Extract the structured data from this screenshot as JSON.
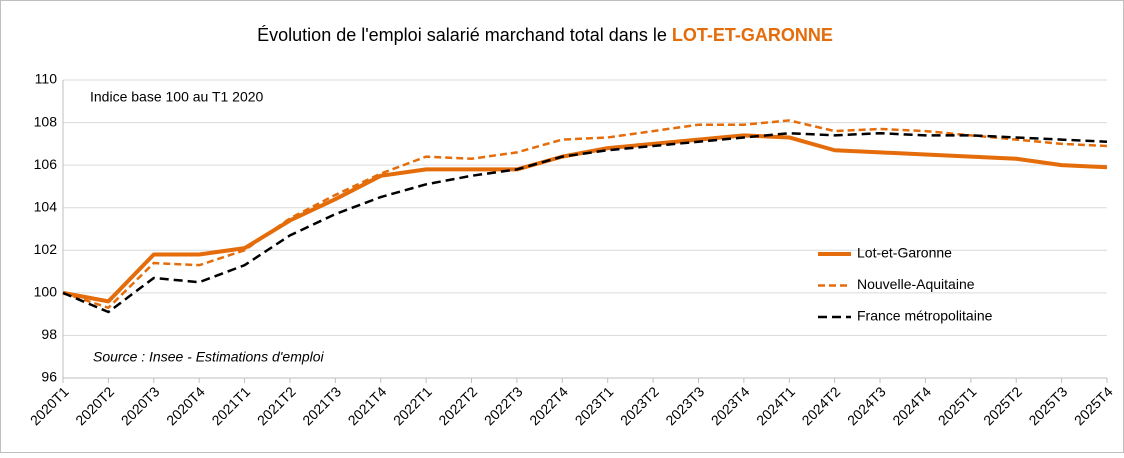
{
  "chart_data": {
    "type": "line",
    "title": "Évolution de l'emploi salarié marchand total dans le ",
    "title_highlight": "LOT-ET-GARONNE",
    "annotations": [
      "Indice base 100 au T1 2020",
      "Source : Insee - Estimations d'emploi"
    ],
    "categories": [
      "2020T1",
      "2020T2",
      "2020T3",
      "2020T4",
      "2021T1",
      "2021T2",
      "2021T3",
      "2021T4",
      "2022T1",
      "2022T2",
      "2022T3",
      "2022T4",
      "2023T1",
      "2023T2",
      "2023T3",
      "2023T4",
      "2024T1",
      "2024T2",
      "2024T3",
      "2024T4",
      "2025T1",
      "2025T2",
      "2025T3",
      "2025T4"
    ],
    "series": [
      {
        "name": "Lot-et-Garonne",
        "color": "#e46c0a",
        "style": "solid",
        "values": [
          100,
          99.6,
          101.8,
          101.8,
          102.1,
          103.4,
          104.4,
          105.5,
          105.8,
          105.8,
          105.8,
          106.4,
          106.8,
          107.0,
          107.2,
          107.4,
          107.3,
          106.7,
          106.6,
          106.5,
          106.4,
          106.3,
          106.0,
          105.9
        ]
      },
      {
        "name": "Nouvelle-Aquitaine",
        "color": "#e46c0a",
        "style": "dashed",
        "values": [
          100,
          99.3,
          101.4,
          101.3,
          102.0,
          103.5,
          104.6,
          105.6,
          106.4,
          106.3,
          106.6,
          107.2,
          107.3,
          107.6,
          107.9,
          107.9,
          108.1,
          107.6,
          107.7,
          107.6,
          107.4,
          107.2,
          107.0,
          106.9
        ]
      },
      {
        "name": "France métropolitaine",
        "color": "#000000",
        "style": "dashed",
        "values": [
          100,
          99.1,
          100.7,
          100.5,
          101.3,
          102.7,
          103.7,
          104.5,
          105.1,
          105.5,
          105.8,
          106.4,
          106.7,
          106.9,
          107.1,
          107.3,
          107.5,
          107.4,
          107.5,
          107.4,
          107.4,
          107.3,
          107.2,
          107.1
        ]
      }
    ],
    "ylim": [
      96,
      110
    ],
    "yticks": [
      96,
      98,
      100,
      102,
      104,
      106,
      108,
      110
    ],
    "grid": true,
    "legend": "right"
  }
}
